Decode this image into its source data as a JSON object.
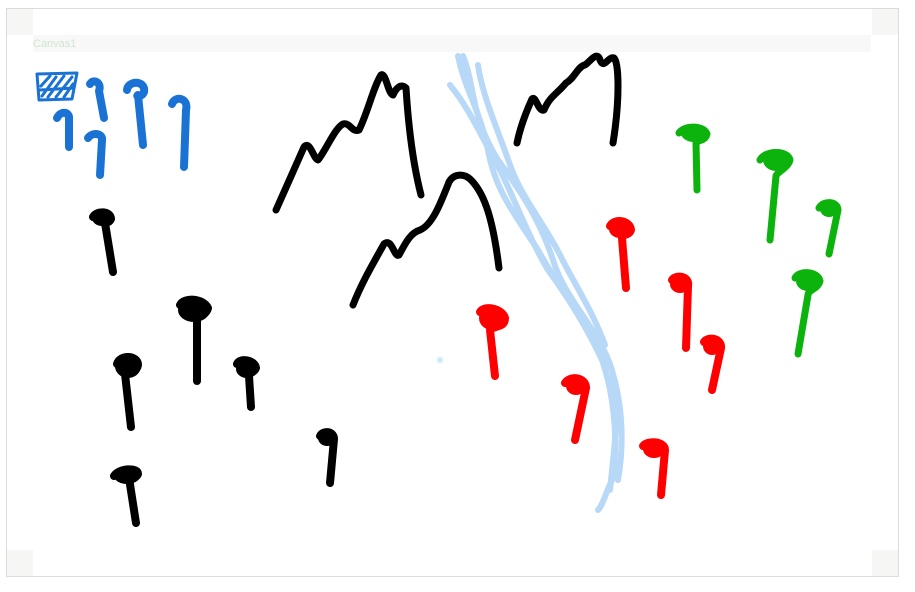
{
  "canvas": {
    "title": "Canvas1",
    "colors": {
      "blue": "#1a73d4",
      "black": "#000000",
      "river": "#b7d8f7",
      "red": "#ff0000",
      "green": "#0cb30c",
      "dot": "#c8f0f4"
    },
    "strokes": [
      "blue-box",
      "blue-trees",
      "black-trees",
      "black-box",
      "mountains",
      "river",
      "red-trees",
      "red-box",
      "green-trees",
      "green-box"
    ]
  }
}
